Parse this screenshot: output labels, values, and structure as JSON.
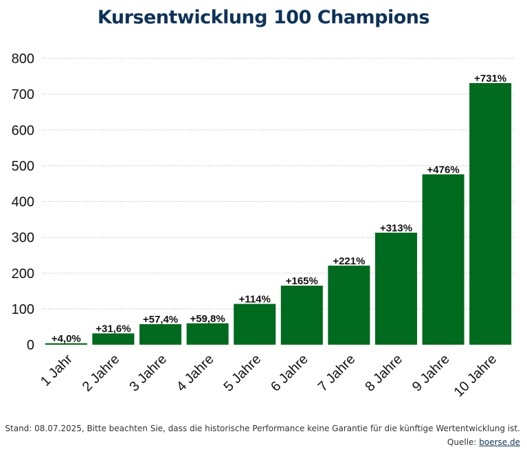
{
  "chart_data": {
    "type": "bar",
    "title": "Kursentwicklung 100 Champions",
    "xlabel": "",
    "ylabel": "",
    "categories": [
      "1 Jahr",
      "2 Jahre",
      "3 Jahre",
      "4 Jahre",
      "5 Jahre",
      "6 Jahre",
      "7 Jahre",
      "8 Jahre",
      "9 Jahre",
      "10 Jahre"
    ],
    "values": [
      4.0,
      31.6,
      57.4,
      59.8,
      114,
      165,
      221,
      313,
      476,
      731
    ],
    "data_labels": [
      "+4,0%",
      "+31,6%",
      "+57,4%",
      "+59,8%",
      "+114%",
      "+165%",
      "+221%",
      "+313%",
      "+476%",
      "+731%"
    ],
    "ylim": [
      0,
      800
    ],
    "yticks": [
      0,
      100,
      200,
      300,
      400,
      500,
      600,
      700,
      800
    ],
    "grid": true,
    "bar_color": "#006a1e"
  },
  "footer": {
    "note": "Stand: 08.07.2025, Bitte beachten Sie, dass die historische Performance keine Garantie für die künftige Wertentwicklung ist.",
    "source_prefix": "Quelle: ",
    "source_link": "boerse.de"
  }
}
